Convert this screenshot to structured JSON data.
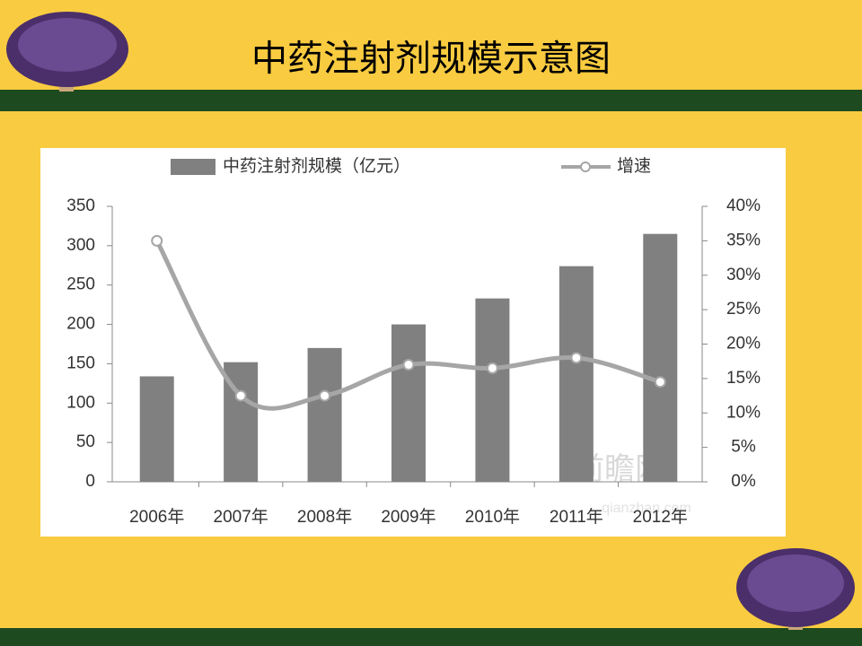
{
  "chart_data": {
    "type": "bar-line",
    "title": "中药注射剂规模示意图",
    "categories": [
      "2006年",
      "2007年",
      "2008年",
      "2009年",
      "2010年",
      "2011年",
      "2012年"
    ],
    "series": [
      {
        "name": "中药注射剂规模（亿元）",
        "type": "bar",
        "color": "#808080",
        "values": [
          134,
          152,
          170,
          200,
          233,
          274,
          315
        ]
      },
      {
        "name": "增速",
        "type": "line",
        "axis": "y2",
        "color": "#a6a6a6",
        "values": [
          35,
          12.5,
          12.5,
          17,
          16.5,
          18,
          14.5
        ]
      }
    ],
    "ylim": [
      0,
      350
    ],
    "yticks": [
      0,
      50,
      100,
      150,
      200,
      250,
      300,
      350
    ],
    "y2lim": [
      0,
      40
    ],
    "y2ticks": [
      {
        "value": 0,
        "label": "0%"
      },
      {
        "value": 5,
        "label": "5%"
      },
      {
        "value": 10,
        "label": "10%"
      },
      {
        "value": 15,
        "label": "15%"
      },
      {
        "value": 20,
        "label": "20%"
      },
      {
        "value": 25,
        "label": "25%"
      },
      {
        "value": 30,
        "label": "30%"
      },
      {
        "value": 35,
        "label": "35%"
      },
      {
        "value": 40,
        "label": "40%"
      }
    ],
    "legend": "top",
    "grid": false,
    "annotations": [
      "前瞻网",
      "qianzhan.com"
    ]
  }
}
